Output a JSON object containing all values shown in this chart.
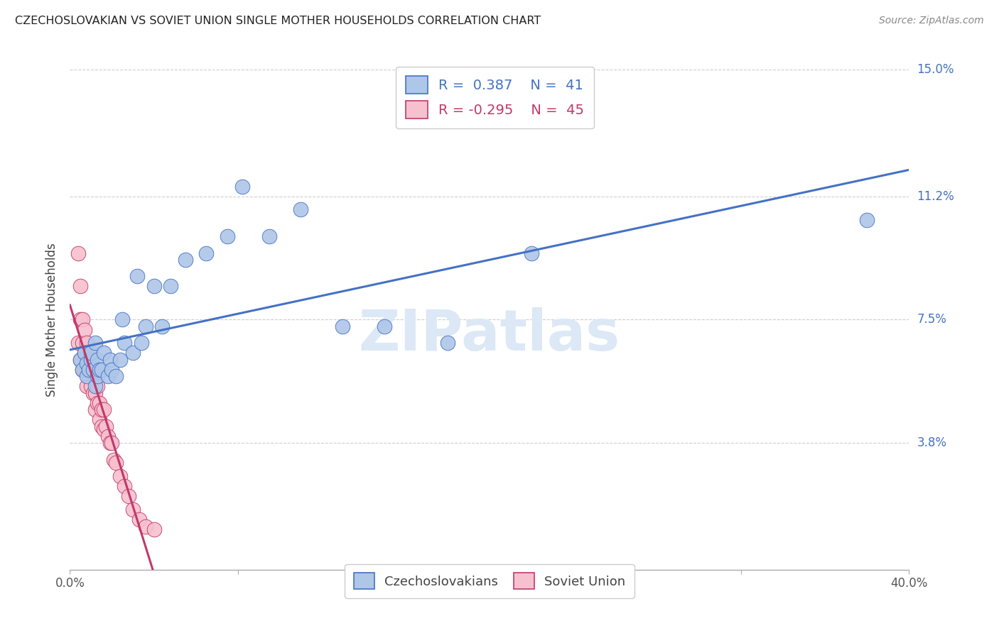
{
  "title": "CZECHOSLOVAKIAN VS SOVIET UNION SINGLE MOTHER HOUSEHOLDS CORRELATION CHART",
  "source": "Source: ZipAtlas.com",
  "ylabel": "Single Mother Households",
  "x_min": 0.0,
  "x_max": 0.4,
  "y_min": 0.0,
  "y_max": 0.15,
  "x_ticks": [
    0.0,
    0.08,
    0.16,
    0.24,
    0.32,
    0.4
  ],
  "x_tick_labels": [
    "0.0%",
    "",
    "",
    "",
    "",
    "40.0%"
  ],
  "y_tick_labels_right": [
    "15.0%",
    "11.2%",
    "7.5%",
    "3.8%"
  ],
  "y_tick_values_right": [
    0.15,
    0.112,
    0.075,
    0.038
  ],
  "czech_color": "#aec6e8",
  "soviet_color": "#f7c0ce",
  "czech_line_color": "#4472c4",
  "soviet_line_color": "#c0396a",
  "legend_czech_r": "0.387",
  "legend_czech_n": "41",
  "legend_soviet_r": "-0.295",
  "legend_soviet_n": "45",
  "watermark": "ZIPatlas",
  "watermark_color": "#dce8f5",
  "czech_points_x": [
    0.005,
    0.006,
    0.007,
    0.008,
    0.008,
    0.009,
    0.01,
    0.01,
    0.011,
    0.012,
    0.012,
    0.013,
    0.013,
    0.014,
    0.015,
    0.016,
    0.018,
    0.019,
    0.02,
    0.022,
    0.024,
    0.025,
    0.026,
    0.03,
    0.032,
    0.034,
    0.036,
    0.04,
    0.044,
    0.048,
    0.055,
    0.065,
    0.075,
    0.082,
    0.095,
    0.11,
    0.13,
    0.15,
    0.18,
    0.22,
    0.38
  ],
  "czech_points_y": [
    0.063,
    0.06,
    0.065,
    0.058,
    0.062,
    0.06,
    0.063,
    0.065,
    0.06,
    0.055,
    0.068,
    0.063,
    0.058,
    0.06,
    0.06,
    0.065,
    0.058,
    0.063,
    0.06,
    0.058,
    0.063,
    0.075,
    0.068,
    0.065,
    0.088,
    0.068,
    0.073,
    0.085,
    0.073,
    0.085,
    0.093,
    0.095,
    0.1,
    0.115,
    0.1,
    0.108,
    0.073,
    0.073,
    0.068,
    0.095,
    0.105
  ],
  "soviet_points_x": [
    0.004,
    0.004,
    0.005,
    0.005,
    0.005,
    0.006,
    0.006,
    0.006,
    0.007,
    0.007,
    0.007,
    0.008,
    0.008,
    0.008,
    0.009,
    0.009,
    0.01,
    0.01,
    0.01,
    0.011,
    0.011,
    0.012,
    0.012,
    0.012,
    0.013,
    0.013,
    0.014,
    0.014,
    0.015,
    0.015,
    0.016,
    0.016,
    0.017,
    0.018,
    0.019,
    0.02,
    0.021,
    0.022,
    0.024,
    0.026,
    0.028,
    0.03,
    0.033,
    0.036,
    0.04
  ],
  "soviet_points_y": [
    0.095,
    0.068,
    0.085,
    0.075,
    0.063,
    0.075,
    0.068,
    0.06,
    0.072,
    0.065,
    0.06,
    0.068,
    0.06,
    0.055,
    0.065,
    0.058,
    0.065,
    0.06,
    0.055,
    0.06,
    0.053,
    0.058,
    0.053,
    0.048,
    0.055,
    0.05,
    0.05,
    0.045,
    0.048,
    0.043,
    0.048,
    0.042,
    0.043,
    0.04,
    0.038,
    0.038,
    0.033,
    0.032,
    0.028,
    0.025,
    0.022,
    0.018,
    0.015,
    0.013,
    0.012
  ],
  "background_color": "#ffffff",
  "grid_color": "#c8c8c8"
}
